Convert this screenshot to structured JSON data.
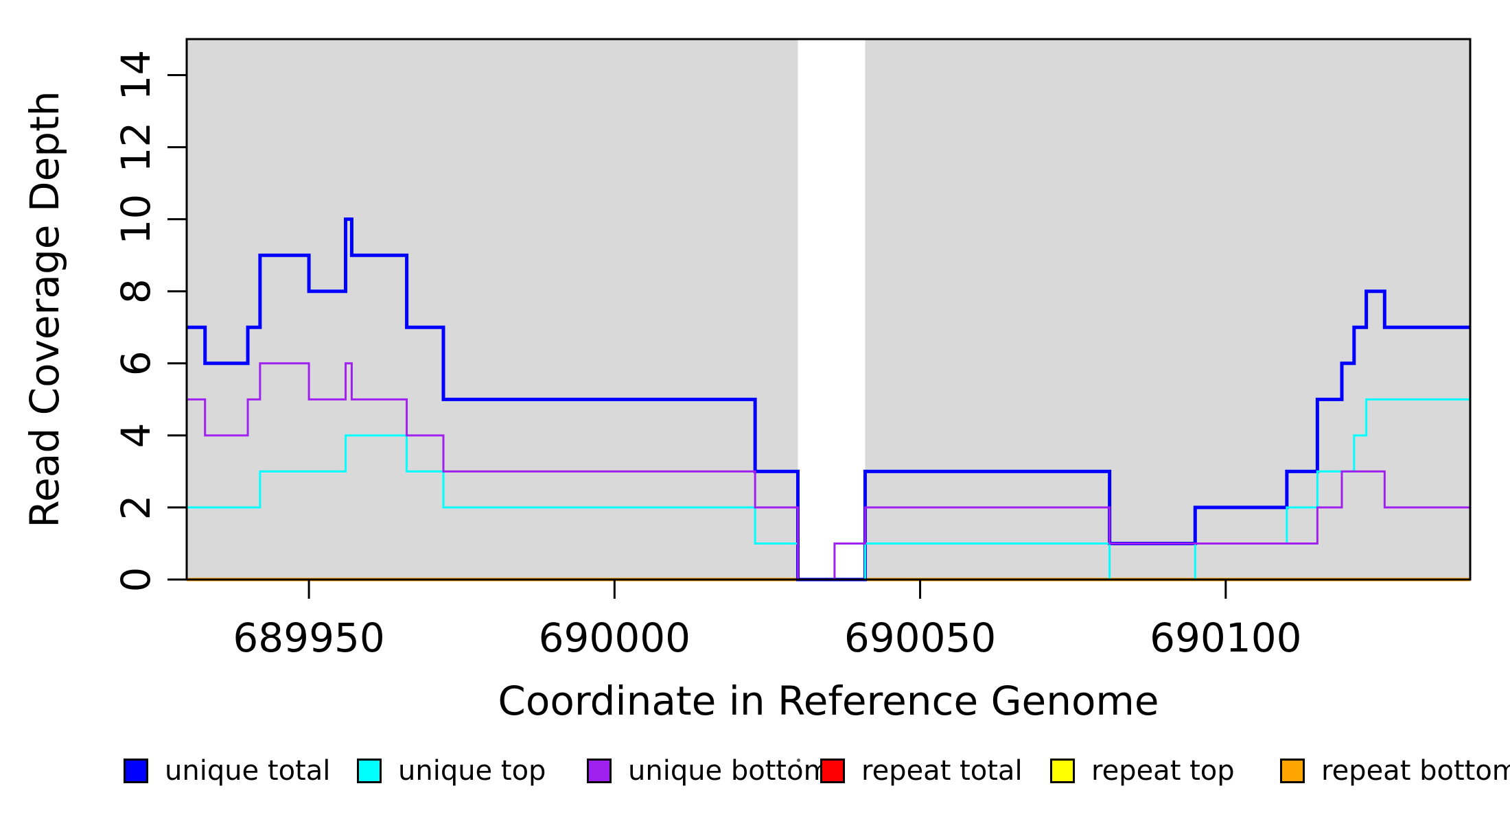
{
  "page": {
    "background": "#FFFFFF"
  },
  "chart_data": {
    "type": "line",
    "subtype": "step",
    "title": "",
    "xlabel": "Coordinate in Reference Genome",
    "ylabel": "Read Coverage Depth",
    "xlim": [
      689930,
      690140
    ],
    "ylim": [
      0,
      15
    ],
    "x_ticks": [
      689950,
      690000,
      690050,
      690100
    ],
    "y_ticks": [
      0,
      2,
      4,
      6,
      8,
      10,
      12,
      14
    ],
    "grid": false,
    "legend_position": "bottom",
    "axis_color": "#000000",
    "shaded_regions": [
      {
        "x0": 689930,
        "x1": 690030,
        "color": "#D9D9D9"
      },
      {
        "x0": 690041,
        "x1": 690140,
        "color": "#D9D9D9"
      }
    ],
    "series": [
      {
        "name": "unique total",
        "color": "#0000FF",
        "line_width": 5,
        "step_points": [
          [
            689930,
            7
          ],
          [
            689933,
            6
          ],
          [
            689940,
            7
          ],
          [
            689942,
            9
          ],
          [
            689950,
            8
          ],
          [
            689956,
            10
          ],
          [
            689957,
            9
          ],
          [
            689966,
            7
          ],
          [
            689972,
            5
          ],
          [
            690023,
            3
          ],
          [
            690030,
            0
          ],
          [
            690041,
            3
          ],
          [
            690081,
            1
          ],
          [
            690095,
            2
          ],
          [
            690110,
            3
          ],
          [
            690115,
            5
          ],
          [
            690119,
            6
          ],
          [
            690121,
            7
          ],
          [
            690123,
            8
          ],
          [
            690126,
            7
          ]
        ]
      },
      {
        "name": "unique top",
        "color": "#00FFFF",
        "line_width": 3,
        "step_points": [
          [
            689930,
            2
          ],
          [
            689942,
            3
          ],
          [
            689956,
            4
          ],
          [
            689966,
            3
          ],
          [
            689972,
            2
          ],
          [
            690023,
            1
          ],
          [
            690030,
            0
          ],
          [
            690041,
            1
          ],
          [
            690081,
            0
          ],
          [
            690095,
            1
          ],
          [
            690110,
            2
          ],
          [
            690115,
            3
          ],
          [
            690121,
            4
          ],
          [
            690123,
            5
          ]
        ]
      },
      {
        "name": "unique bottom",
        "color": "#A020F0",
        "line_width": 3,
        "step_points": [
          [
            689930,
            5
          ],
          [
            689933,
            4
          ],
          [
            689940,
            5
          ],
          [
            689942,
            6
          ],
          [
            689950,
            5
          ],
          [
            689956,
            6
          ],
          [
            689957,
            5
          ],
          [
            689966,
            4
          ],
          [
            689972,
            3
          ],
          [
            690023,
            2
          ],
          [
            690030,
            0
          ],
          [
            690036,
            1
          ],
          [
            690041,
            2
          ],
          [
            690081,
            1
          ],
          [
            690115,
            2
          ],
          [
            690119,
            3
          ],
          [
            690126,
            2
          ]
        ]
      },
      {
        "name": "repeat total",
        "color": "#FF0000",
        "line_width": 3,
        "step_points": [
          [
            689930,
            0
          ]
        ]
      },
      {
        "name": "repeat top",
        "color": "#FFFF00",
        "line_width": 3,
        "step_points": [
          [
            689930,
            0
          ]
        ]
      },
      {
        "name": "repeat bottom",
        "color": "#FFA500",
        "line_width": 5,
        "step_points": [
          [
            689930,
            0
          ]
        ]
      }
    ],
    "draw_order": [
      3,
      4,
      5,
      0,
      1,
      2
    ]
  },
  "legend": {
    "items": [
      {
        "label": "unique total",
        "color": "#0000FF"
      },
      {
        "label": "unique top",
        "color": "#00FFFF"
      },
      {
        "label": "unique bottom",
        "color": "#A020F0"
      },
      {
        "label": "repeat total",
        "color": "#FF0000"
      },
      {
        "label": "repeat top",
        "color": "#FFFF00"
      },
      {
        "label": "repeat bottom",
        "color": "#FFA500"
      }
    ]
  }
}
